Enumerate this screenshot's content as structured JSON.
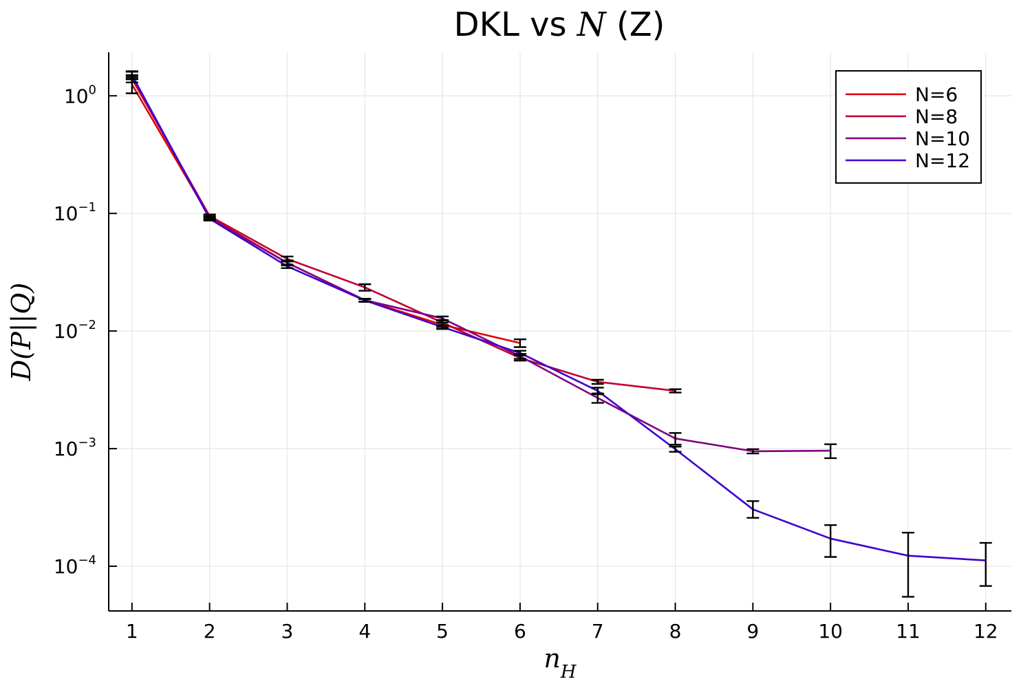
{
  "chart_data": {
    "type": "line",
    "title_prefix": "DKL vs ",
    "title_symbol": "N",
    "title_suffix": " (Z)",
    "xlabel_main": "n",
    "xlabel_sub": "H",
    "ylabel": "D(P||Q)",
    "y_scale": "log10",
    "xlim": [
      0.7,
      12.33
    ],
    "ylim_log10": [
      -4.38,
      0.37
    ],
    "x_ticks": [
      {
        "value": 1,
        "label": "1"
      },
      {
        "value": 2,
        "label": "2"
      },
      {
        "value": 3,
        "label": "3"
      },
      {
        "value": 4,
        "label": "4"
      },
      {
        "value": 5,
        "label": "5"
      },
      {
        "value": 6,
        "label": "6"
      },
      {
        "value": 7,
        "label": "7"
      },
      {
        "value": 8,
        "label": "8"
      },
      {
        "value": 9,
        "label": "9"
      },
      {
        "value": 10,
        "label": "10"
      },
      {
        "value": 11,
        "label": "11"
      },
      {
        "value": 12,
        "label": "12"
      }
    ],
    "y_ticks": [
      {
        "exp": 0,
        "base": "10",
        "sup": "0"
      },
      {
        "exp": -1,
        "base": "10",
        "sup": "−1"
      },
      {
        "exp": -2,
        "base": "10",
        "sup": "−2"
      },
      {
        "exp": -3,
        "base": "10",
        "sup": "−3"
      },
      {
        "exp": -4,
        "base": "10",
        "sup": "−4"
      }
    ],
    "grid": true,
    "legend_position": "top-right",
    "series": [
      {
        "name": "N=6",
        "color": "#e10000",
        "x": [
          1,
          2,
          3,
          4,
          5,
          6
        ],
        "y": [
          1.25,
          0.093,
          0.038,
          0.0183,
          0.0113,
          0.0079
        ],
        "err_low": [
          1.05,
          0.089,
          0.0363,
          0.0178,
          0.0108,
          0.0073
        ],
        "err_high": [
          1.45,
          0.097,
          0.0398,
          0.0188,
          0.0118,
          0.0085
        ]
      },
      {
        "name": "N=8",
        "color": "#c00030",
        "x": [
          1,
          2,
          3,
          4,
          5,
          6,
          7,
          8
        ],
        "y": [
          1.4,
          0.095,
          0.041,
          0.0235,
          0.0118,
          0.0059,
          0.0037,
          0.0031
        ],
        "err_low": [
          1.3,
          0.092,
          0.039,
          0.022,
          0.0112,
          0.0056,
          0.00355,
          0.003
        ],
        "err_high": [
          1.5,
          0.098,
          0.043,
          0.025,
          0.0124,
          0.0062,
          0.00385,
          0.0032
        ]
      },
      {
        "name": "N=10",
        "color": "#80007f",
        "x": [
          1,
          2,
          3,
          4,
          5,
          6,
          7,
          8,
          9,
          10
        ],
        "y": [
          1.5,
          0.091,
          0.038,
          0.0183,
          0.0128,
          0.0061,
          0.0027,
          0.00122,
          0.00095,
          0.00096
        ],
        "err_low": [
          1.38,
          0.088,
          0.0362,
          0.0178,
          0.0123,
          0.0058,
          0.00245,
          0.00108,
          0.00091,
          0.00083
        ],
        "err_high": [
          1.62,
          0.094,
          0.0398,
          0.0188,
          0.0133,
          0.0064,
          0.00295,
          0.00136,
          0.00099,
          0.00109
        ]
      },
      {
        "name": "N=12",
        "color": "#3f00cf",
        "x": [
          1,
          2,
          3,
          4,
          5,
          6,
          7,
          8,
          9,
          10,
          11,
          12
        ],
        "y": [
          1.5,
          0.09,
          0.0355,
          0.0182,
          0.0108,
          0.0065,
          0.0031,
          0.00099,
          0.000305,
          0.000172,
          0.000123,
          0.000112
        ],
        "err_low": [
          1.4,
          0.087,
          0.0343,
          0.0177,
          0.0104,
          0.0062,
          0.0029,
          0.00094,
          0.000258,
          0.00012,
          5.5e-05,
          6.8e-05
        ],
        "err_high": [
          1.6,
          0.093,
          0.0367,
          0.0187,
          0.0112,
          0.0068,
          0.0033,
          0.00104,
          0.000358,
          0.000224,
          0.000193,
          0.000158
        ]
      }
    ]
  }
}
